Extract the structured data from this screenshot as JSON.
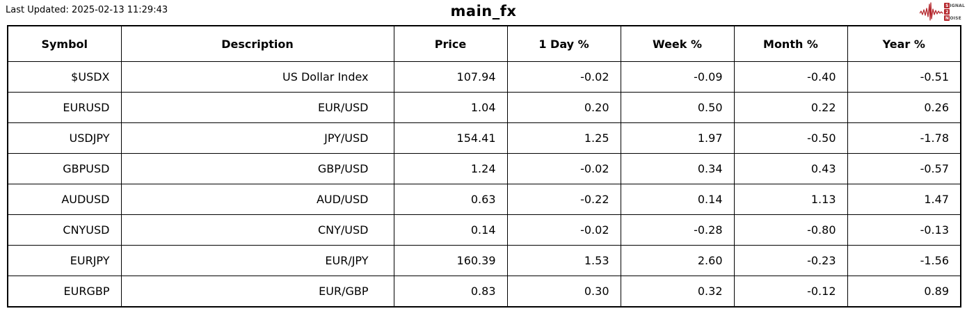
{
  "meta": {
    "last_updated": "Last Updated: 2025-02-13 11:29:43",
    "title": "main_fx"
  },
  "logo": {
    "line1": {
      "badge": "S",
      "rest": "IGNAL"
    },
    "line2": {
      "badge": "2",
      "rest": ""
    },
    "line3": {
      "badge": "N",
      "rest": "OISE"
    }
  },
  "colors": {
    "accent_red": "#b5282e",
    "strong_gain_bg": "#006400",
    "gain_bg": "#90ee90",
    "loss_bg": "#f08080",
    "neutral_bg": "#ffffff",
    "border": "#000000"
  },
  "chart_data": {
    "type": "table",
    "columns": [
      "Symbol",
      "Description",
      "Price",
      "1 Day %",
      "Week %",
      "Month %",
      "Year %"
    ],
    "rows": [
      {
        "cells": [
          "$USDX",
          "US Dollar Index",
          "107.94",
          "-0.02",
          "-0.09",
          "-0.40",
          "-0.51"
        ],
        "highlights": [
          null,
          null,
          null,
          null,
          null,
          null,
          null
        ]
      },
      {
        "cells": [
          "EURUSD",
          "EUR/USD",
          "1.04",
          "0.20",
          "0.50",
          "0.22",
          "0.26"
        ],
        "highlights": [
          null,
          null,
          null,
          null,
          null,
          null,
          null
        ]
      },
      {
        "cells": [
          "USDJPY",
          "JPY/USD",
          "154.41",
          "1.25",
          "1.97",
          "-0.50",
          "-1.78"
        ],
        "highlights": [
          null,
          null,
          null,
          "strong-gain",
          "strong-gain",
          null,
          "loss"
        ]
      },
      {
        "cells": [
          "GBPUSD",
          "GBP/USD",
          "1.24",
          "-0.02",
          "0.34",
          "0.43",
          "-0.57"
        ],
        "highlights": [
          null,
          null,
          null,
          null,
          null,
          null,
          null
        ]
      },
      {
        "cells": [
          "AUDUSD",
          "AUD/USD",
          "0.63",
          "-0.22",
          "0.14",
          "1.13",
          "1.47"
        ],
        "highlights": [
          null,
          null,
          null,
          null,
          null,
          null,
          "gain"
        ]
      },
      {
        "cells": [
          "CNYUSD",
          "CNY/USD",
          "0.14",
          "-0.02",
          "-0.28",
          "-0.80",
          "-0.13"
        ],
        "highlights": [
          null,
          null,
          null,
          null,
          "loss",
          "loss",
          null
        ]
      },
      {
        "cells": [
          "EURJPY",
          "EUR/JPY",
          "160.39",
          "1.53",
          "2.60",
          "-0.23",
          "-1.56"
        ],
        "highlights": [
          null,
          null,
          null,
          "strong-gain",
          "strong-gain",
          null,
          "loss"
        ]
      },
      {
        "cells": [
          "EURGBP",
          "EUR/GBP",
          "0.83",
          "0.30",
          "0.32",
          "-0.12",
          "0.89"
        ],
        "highlights": [
          null,
          null,
          null,
          "gain",
          null,
          null,
          null
        ]
      }
    ]
  }
}
